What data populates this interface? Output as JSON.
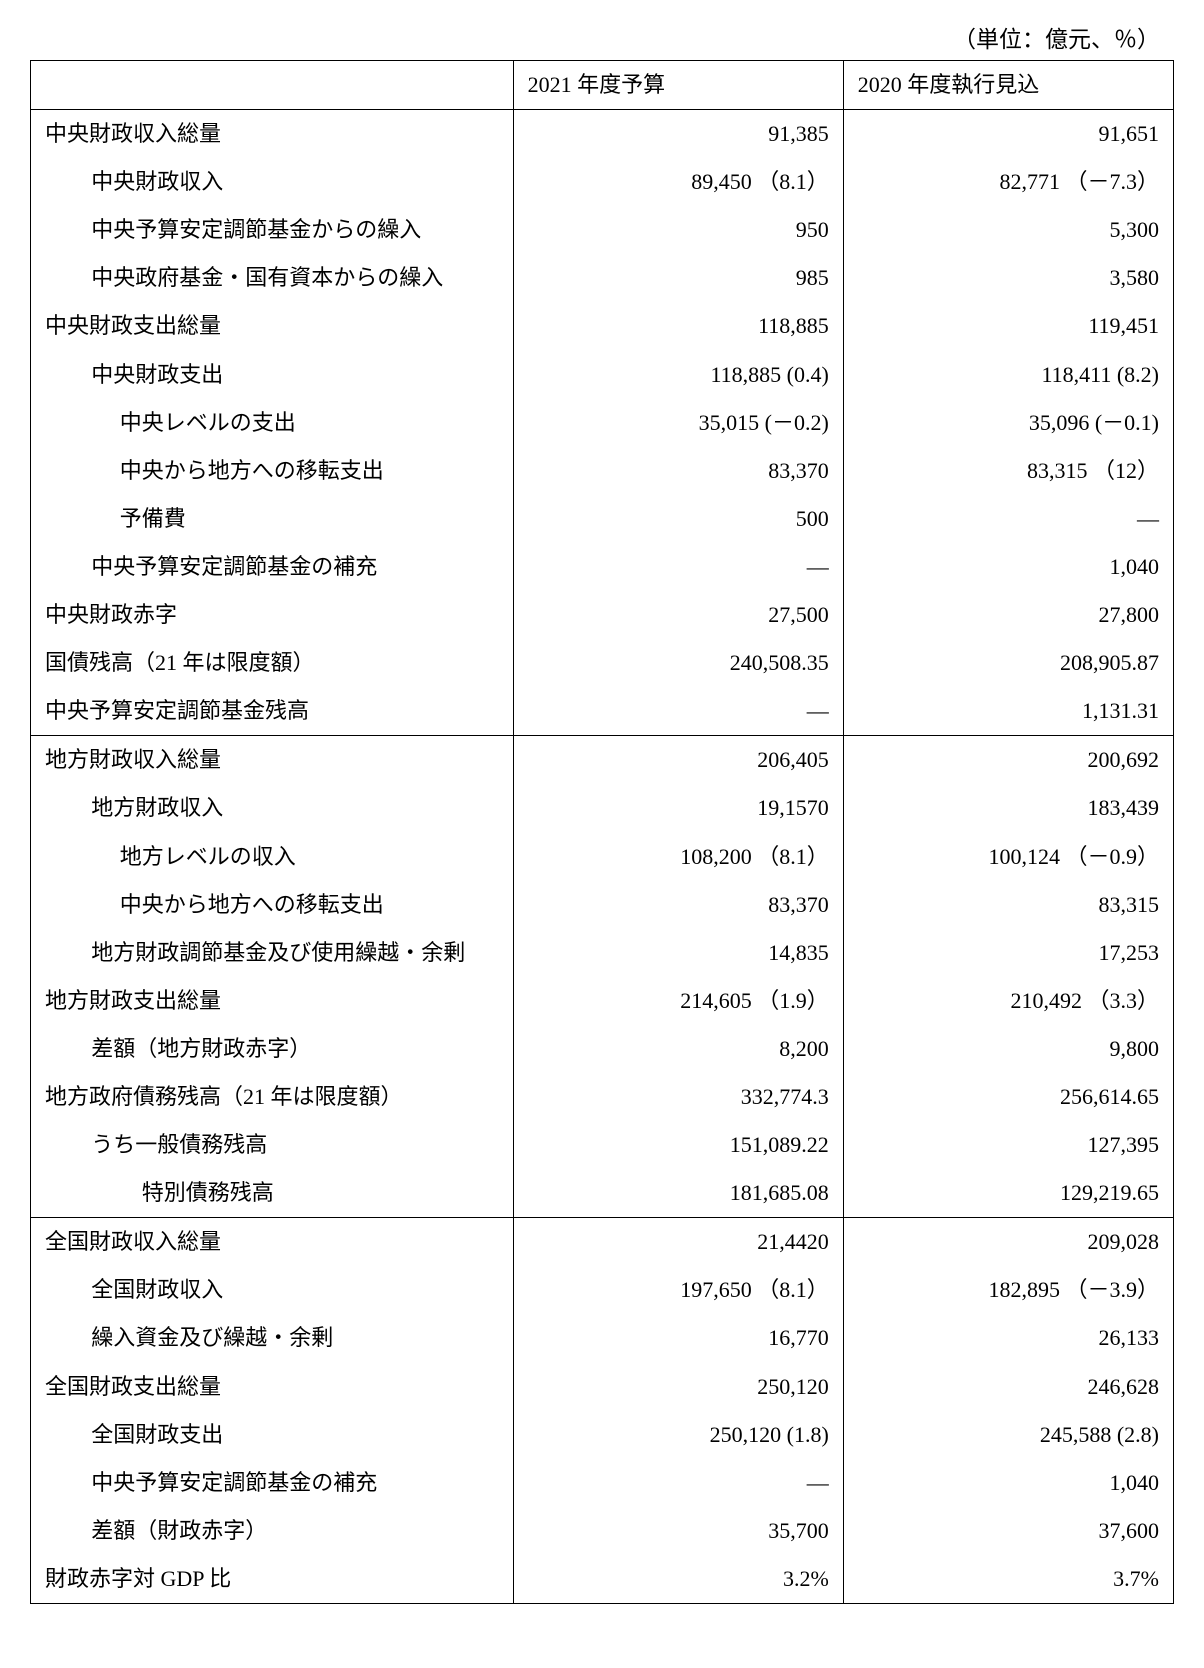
{
  "unit_label": "（単位：億元、％）",
  "headers": {
    "label": "",
    "col1": "2021 年度予算",
    "col2": "2020 年度執行見込"
  },
  "rows": [
    {
      "label": "中央財政収入総量",
      "indent": 0,
      "v1": "91,385",
      "v2": "91,651",
      "section_top": true
    },
    {
      "label": "中央財政収入",
      "indent": 1,
      "v1": "89,450 （8.1）",
      "v2": "82,771 （－7.3）"
    },
    {
      "label": "中央予算安定調節基金からの繰入",
      "indent": 1,
      "v1": "950",
      "v2": "5,300"
    },
    {
      "label": "中央政府基金・国有資本からの繰入",
      "indent": 1,
      "v1": "985",
      "v2": "3,580"
    },
    {
      "label": "中央財政支出総量",
      "indent": 0,
      "v1": "118,885",
      "v2": "119,451"
    },
    {
      "label": "中央財政支出",
      "indent": 1,
      "v1": "118,885 (0.4)",
      "v2": "118,411 (8.2)"
    },
    {
      "label": "中央レベルの支出",
      "indent": 2,
      "v1": "35,015 (－0.2)",
      "v2": "35,096 (－0.1)"
    },
    {
      "label": "中央から地方への移転支出",
      "indent": 2,
      "v1": "83,370",
      "v2": "83,315 （12）"
    },
    {
      "label": "予備費",
      "indent": 2,
      "v1": "500",
      "v2": "―"
    },
    {
      "label": "中央予算安定調節基金の補充",
      "indent": 1,
      "v1": "―",
      "v2": "1,040"
    },
    {
      "label": "中央財政赤字",
      "indent": 0,
      "v1": "27,500",
      "v2": "27,800"
    },
    {
      "label": "国債残高（21 年は限度額）",
      "indent": 0,
      "v1": "240,508.35",
      "v2": "208,905.87"
    },
    {
      "label": "中央予算安定調節基金残高",
      "indent": 0,
      "v1": "―",
      "v2": "1,131.31"
    },
    {
      "label": "地方財政収入総量",
      "indent": 0,
      "v1": "206,405",
      "v2": "200,692",
      "section_top": true
    },
    {
      "label": "地方財政収入",
      "indent": 1,
      "v1": "19,1570",
      "v2": "183,439"
    },
    {
      "label": "地方レベルの収入",
      "indent": 2,
      "v1": "108,200 （8.1）",
      "v2": "100,124 （－0.9）"
    },
    {
      "label": "中央から地方への移転支出",
      "indent": 2,
      "v1": "83,370",
      "v2": "83,315"
    },
    {
      "label": "地方財政調節基金及び使用繰越・余剰",
      "indent": 1,
      "v1": "14,835",
      "v2": "17,253"
    },
    {
      "label": "地方財政支出総量",
      "indent": 0,
      "v1": "214,605 （1.9）",
      "v2": "210,492 （3.3）"
    },
    {
      "label": "差額（地方財政赤字）",
      "indent": 1,
      "v1": "8,200",
      "v2": "9,800"
    },
    {
      "label": "地方政府債務残高（21 年は限度額）",
      "indent": 0,
      "v1": "332,774.3",
      "v2": "256,614.65"
    },
    {
      "label": "うち一般債務残高",
      "indent": 1,
      "v1": "151,089.22",
      "v2": "127,395"
    },
    {
      "label": "特別債務残高",
      "indent": 3,
      "v1": "181,685.08",
      "v2": "129,219.65"
    },
    {
      "label": "全国財政収入総量",
      "indent": 0,
      "v1": "21,4420",
      "v2": "209,028",
      "section_top": true
    },
    {
      "label": "全国財政収入",
      "indent": 1,
      "v1": "197,650 （8.1）",
      "v2": "182,895 （－3.9）"
    },
    {
      "label": "繰入資金及び繰越・余剰",
      "indent": 1,
      "v1": "16,770",
      "v2": "26,133"
    },
    {
      "label": "全国財政支出総量",
      "indent": 0,
      "v1": "250,120",
      "v2": "246,628"
    },
    {
      "label": "全国財政支出",
      "indent": 1,
      "v1": "250,120 (1.8)",
      "v2": "245,588 (2.8)"
    },
    {
      "label": "中央予算安定調節基金の補充",
      "indent": 1,
      "v1": "―",
      "v2": "1,040"
    },
    {
      "label": "差額（財政赤字）",
      "indent": 1,
      "v1": "35,700",
      "v2": "37,600"
    },
    {
      "label": "財政赤字対 GDP 比",
      "indent": 0,
      "v1": "3.2%",
      "v2": "3.7%",
      "last": true
    }
  ]
}
